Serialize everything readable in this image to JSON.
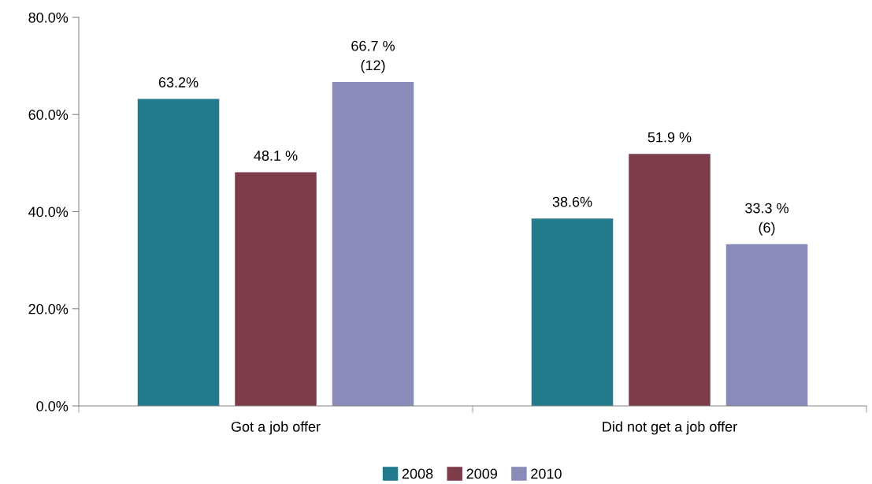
{
  "chart_data": {
    "type": "bar",
    "categories": [
      "Got a job offer",
      "Did not get a job offer"
    ],
    "series": [
      {
        "name": "2008",
        "color": "#237a8c",
        "values": [
          63.2,
          38.6
        ],
        "value_labels": [
          "63.2%",
          "38.6%"
        ]
      },
      {
        "name": "2009",
        "color": "#7d3c4a",
        "values": [
          48.1,
          51.9
        ],
        "value_labels": [
          "48.1 %",
          "51.9 %"
        ]
      },
      {
        "name": "2010",
        "color": "#8a8bb8",
        "values": [
          66.7,
          33.3
        ],
        "value_labels": [
          "66.7 %\n(12)",
          "33.3 %\n(6)"
        ]
      }
    ],
    "ylim": [
      0,
      80
    ],
    "yticks": [
      {
        "value": 0,
        "label": "0.0%"
      },
      {
        "value": 20,
        "label": "20.0%"
      },
      {
        "value": 40,
        "label": "40.0%"
      },
      {
        "value": 60,
        "label": "60.0%"
      },
      {
        "value": 80,
        "label": "80.0%"
      }
    ],
    "grid": false,
    "legend": "bottom"
  }
}
